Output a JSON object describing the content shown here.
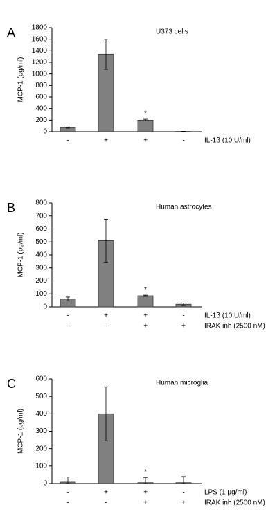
{
  "chart_data": [
    {
      "type": "bar",
      "panel": "A",
      "title": "U373 cells",
      "y_label": "MCP-1 (pg/ml)",
      "values": [
        70,
        1340,
        200,
        5
      ],
      "errors": [
        10,
        260,
        15,
        2
      ],
      "color": "#808080",
      "ylim": [
        0,
        1800
      ],
      "yticks": [
        0,
        200,
        400,
        600,
        800,
        1000,
        1200,
        1400,
        1600,
        1800
      ],
      "annotations": [
        {
          "text": "*",
          "index": 2
        }
      ],
      "conditions": [
        {
          "label": "IL-1β (10 U/ml)",
          "signs": [
            "-",
            "+",
            "+",
            "-"
          ]
        }
      ]
    },
    {
      "type": "bar",
      "panel": "B",
      "title": "Human astrocytes",
      "y_label": "MCP-1 (pg/ml)",
      "values": [
        60,
        510,
        85,
        20
      ],
      "errors": [
        15,
        165,
        5,
        10
      ],
      "color": "#808080",
      "ylim": [
        0,
        800
      ],
      "yticks": [
        0,
        100,
        200,
        300,
        400,
        500,
        600,
        700,
        800
      ],
      "annotations": [
        {
          "text": "*",
          "index": 2
        }
      ],
      "conditions": [
        {
          "label": "IL-1β (10 U/ml)",
          "signs": [
            "-",
            "+",
            "+",
            "-"
          ]
        },
        {
          "label": "IRAK inh (2500 nM)",
          "signs": [
            "-",
            "-",
            "+",
            "+"
          ]
        }
      ]
    },
    {
      "type": "bar",
      "panel": "C",
      "title": "Human microglia",
      "y_label": "MCP-1 (pg/ml)",
      "values": [
        8,
        400,
        5,
        5
      ],
      "errors": [
        30,
        155,
        30,
        35
      ],
      "color": "#808080",
      "ylim": [
        0,
        600
      ],
      "yticks": [
        0,
        100,
        200,
        300,
        400,
        500,
        600
      ],
      "annotations": [
        {
          "text": "*",
          "index": 2
        }
      ],
      "conditions": [
        {
          "label": "LPS (1 μg/ml)",
          "signs": [
            "-",
            "+",
            "+",
            "-"
          ]
        },
        {
          "label": "IRAK inh (2500 nM)",
          "signs": [
            "-",
            "-",
            "+",
            "+"
          ]
        }
      ]
    }
  ]
}
